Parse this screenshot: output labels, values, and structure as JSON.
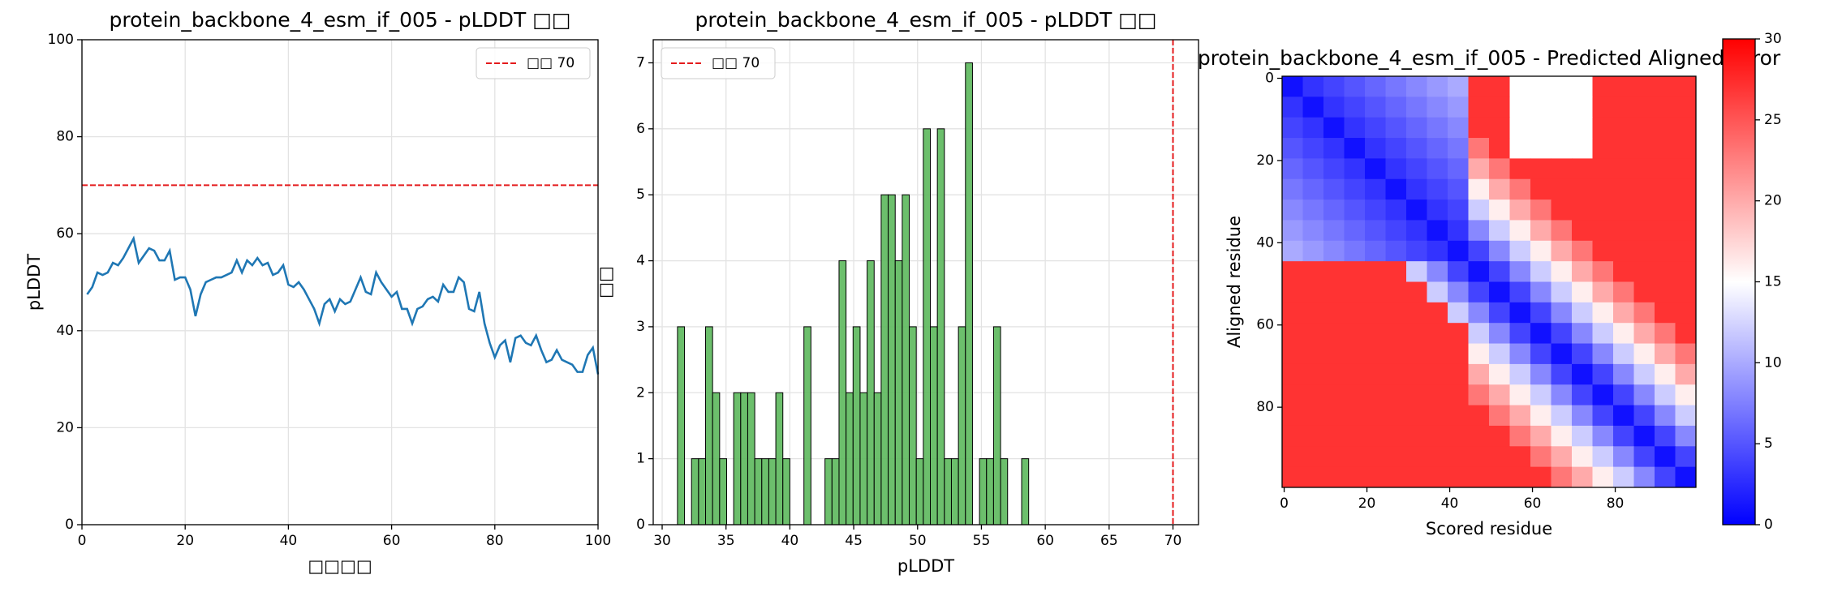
{
  "chart_data": [
    {
      "type": "line",
      "title": "protein_backbone_4_esm_if_005 - pLDDT □□",
      "xlabel": "□□□□",
      "ylabel": "pLDDT",
      "x": [
        1,
        2,
        3,
        4,
        5,
        6,
        7,
        8,
        9,
        10,
        11,
        12,
        13,
        14,
        15,
        16,
        17,
        18,
        19,
        20,
        21,
        22,
        23,
        24,
        25,
        26,
        27,
        28,
        29,
        30,
        31,
        32,
        33,
        34,
        35,
        36,
        37,
        38,
        39,
        40,
        41,
        42,
        43,
        44,
        45,
        46,
        47,
        48,
        49,
        50,
        51,
        52,
        53,
        54,
        55,
        56,
        57,
        58,
        59,
        60,
        61,
        62,
        63,
        64,
        65,
        66,
        67,
        68,
        69,
        70,
        71,
        72,
        73,
        74,
        75,
        76,
        77,
        78,
        79,
        80,
        81,
        82,
        83,
        84,
        85,
        86,
        87,
        88,
        89,
        90,
        91,
        92,
        93,
        94,
        95,
        96,
        97,
        98,
        99,
        100
      ],
      "values": [
        47.5,
        49,
        52,
        51.5,
        52,
        54,
        53.5,
        55,
        57,
        59,
        54,
        55.5,
        57,
        56.5,
        54.5,
        54.5,
        56.5,
        50.5,
        51,
        51,
        48.5,
        43,
        47.5,
        50,
        50.5,
        51,
        51,
        51.5,
        52,
        54.5,
        52,
        54.5,
        53.5,
        55,
        53.5,
        54,
        51.5,
        52,
        53.5,
        49.5,
        49,
        50,
        48.5,
        46.5,
        44.5,
        41.5,
        45.5,
        46.5,
        44,
        46.5,
        45.5,
        46,
        48.5,
        51,
        48,
        47.5,
        52,
        50,
        48.5,
        47,
        48,
        44.5,
        44.5,
        41.5,
        44.5,
        45,
        46.5,
        47,
        46,
        49.5,
        48,
        48,
        51,
        50,
        44.5,
        44,
        48,
        41.5,
        37.5,
        34.5,
        37,
        38,
        33.5,
        38.5,
        39,
        37.5,
        37,
        39,
        36,
        33.5,
        34,
        36,
        34,
        33.5,
        33,
        31.5,
        31.5,
        35,
        36.5,
        31
      ],
      "color": "#1f77b4",
      "xlim": [
        0,
        100
      ],
      "ylim": [
        0,
        100
      ],
      "xticks": [
        0,
        20,
        40,
        60,
        80,
        100
      ],
      "yticks": [
        0,
        20,
        40,
        60,
        80,
        100
      ],
      "grid": true,
      "threshold": {
        "value": 70,
        "label": "□□ 70",
        "color": "#e41a1c",
        "orientation": "horizontal"
      },
      "legend": "upper right"
    },
    {
      "type": "histogram",
      "title": "protein_backbone_4_esm_if_005 - pLDDT □□",
      "xlabel": "pLDDT",
      "ylabel": "□□",
      "bins": [
        31.2,
        31.75,
        32.3,
        32.85,
        33.4,
        33.95,
        34.5,
        35.05,
        35.6,
        36.15,
        36.7,
        37.25,
        37.8,
        38.35,
        38.9,
        39.45,
        40.0,
        40.55,
        41.1,
        41.65,
        42.2,
        42.75,
        43.3,
        43.85,
        44.4,
        44.95,
        45.5,
        46.05,
        46.6,
        47.15,
        47.7,
        48.25,
        48.8,
        49.35,
        49.9,
        50.45,
        51.0,
        51.55,
        52.1,
        52.65,
        53.2,
        53.75,
        54.3,
        54.85,
        55.4,
        55.95,
        56.5,
        57.05,
        57.6,
        58.15,
        58.7
      ],
      "counts": [
        3,
        0,
        1,
        1,
        3,
        2,
        1,
        0,
        2,
        2,
        2,
        1,
        1,
        1,
        2,
        1,
        0,
        0,
        3,
        0,
        0,
        1,
        1,
        4,
        2,
        3,
        2,
        4,
        2,
        5,
        5,
        4,
        5,
        3,
        1,
        6,
        3,
        6,
        1,
        1,
        3,
        7,
        0,
        1,
        1,
        3,
        1,
        0,
        0,
        1
      ],
      "color": "#5cb85c",
      "xlim": [
        29.3,
        72
      ],
      "ylim": [
        0,
        7.35
      ],
      "xticks": [
        30,
        35,
        40,
        45,
        50,
        55,
        60,
        65,
        70
      ],
      "yticks": [
        0,
        1,
        2,
        3,
        4,
        5,
        6,
        7
      ],
      "grid": true,
      "threshold": {
        "value": 70,
        "label": "□□ 70",
        "color": "#e41a1c",
        "orientation": "vertical"
      },
      "legend": "upper left"
    },
    {
      "type": "heatmap",
      "title": "protein_backbone_4_esm_if_005 - Predicted Aligned Error",
      "xlabel": "Scored residue",
      "ylabel": "Aligned residue",
      "xlim": [
        -0.5,
        99.5
      ],
      "ylim": [
        99.5,
        -0.5
      ],
      "xticks": [
        0,
        20,
        40,
        60,
        80
      ],
      "yticks": [
        0,
        20,
        40,
        60,
        80
      ],
      "colormap": "bwr",
      "colorbar": {
        "lim": [
          0,
          30
        ],
        "ticks": [
          0,
          5,
          10,
          15,
          20,
          25,
          30
        ]
      },
      "matrix": [
        [
          1,
          3,
          4,
          5,
          6,
          7,
          8,
          9,
          10,
          27,
          27,
          15,
          15,
          15,
          15,
          27,
          27,
          27,
          27,
          27
        ],
        [
          3,
          1,
          3,
          4,
          5,
          6,
          7,
          8,
          9,
          27,
          27,
          15,
          15,
          15,
          15,
          27,
          27,
          27,
          27,
          27
        ],
        [
          4,
          3,
          1,
          3,
          4,
          5,
          6,
          7,
          8,
          27,
          27,
          15,
          15,
          15,
          15,
          27,
          27,
          27,
          27,
          27
        ],
        [
          5,
          4,
          3,
          1,
          3,
          4,
          5,
          6,
          7,
          23,
          27,
          15,
          15,
          15,
          15,
          27,
          27,
          27,
          27,
          27
        ],
        [
          6,
          5,
          4,
          3,
          1,
          3,
          4,
          5,
          6,
          20,
          23,
          27,
          27,
          27,
          27,
          27,
          27,
          27,
          27,
          27
        ],
        [
          7,
          6,
          5,
          4,
          3,
          1,
          3,
          4,
          5,
          16,
          20,
          23,
          27,
          27,
          27,
          27,
          27,
          27,
          27,
          27
        ],
        [
          8,
          7,
          6,
          5,
          4,
          3,
          1,
          3,
          4,
          12,
          16,
          20,
          23,
          27,
          27,
          27,
          27,
          27,
          27,
          27
        ],
        [
          9,
          8,
          7,
          6,
          5,
          4,
          3,
          1,
          3,
          8,
          12,
          16,
          20,
          23,
          27,
          27,
          27,
          27,
          27,
          27
        ],
        [
          10,
          9,
          8,
          7,
          6,
          5,
          4,
          3,
          1,
          4,
          8,
          12,
          16,
          20,
          23,
          27,
          27,
          27,
          27,
          27
        ],
        [
          27,
          27,
          27,
          27,
          27,
          27,
          12,
          8,
          4,
          1,
          4,
          8,
          12,
          16,
          20,
          23,
          27,
          27,
          27,
          27
        ],
        [
          27,
          27,
          27,
          27,
          27,
          27,
          27,
          12,
          8,
          4,
          1,
          4,
          8,
          12,
          16,
          20,
          23,
          27,
          27,
          27
        ],
        [
          27,
          27,
          27,
          27,
          27,
          27,
          27,
          27,
          12,
          8,
          4,
          1,
          4,
          8,
          12,
          16,
          20,
          23,
          27,
          27
        ],
        [
          27,
          27,
          27,
          27,
          27,
          27,
          27,
          27,
          27,
          12,
          8,
          4,
          1,
          4,
          8,
          12,
          16,
          20,
          23,
          27
        ],
        [
          27,
          27,
          27,
          27,
          27,
          27,
          27,
          27,
          27,
          16,
          12,
          8,
          4,
          1,
          4,
          8,
          12,
          16,
          20,
          23
        ],
        [
          27,
          27,
          27,
          27,
          27,
          27,
          27,
          27,
          27,
          20,
          16,
          12,
          8,
          4,
          1,
          4,
          8,
          12,
          16,
          20
        ],
        [
          27,
          27,
          27,
          27,
          27,
          27,
          27,
          27,
          27,
          23,
          20,
          16,
          12,
          8,
          4,
          1,
          4,
          8,
          12,
          16
        ],
        [
          27,
          27,
          27,
          27,
          27,
          27,
          27,
          27,
          27,
          27,
          23,
          20,
          16,
          12,
          8,
          4,
          1,
          4,
          8,
          12
        ],
        [
          27,
          27,
          27,
          27,
          27,
          27,
          27,
          27,
          27,
          27,
          27,
          23,
          20,
          16,
          12,
          8,
          4,
          1,
          4,
          8
        ],
        [
          27,
          27,
          27,
          27,
          27,
          27,
          27,
          27,
          27,
          27,
          27,
          27,
          23,
          20,
          16,
          12,
          8,
          4,
          1,
          4
        ],
        [
          27,
          27,
          27,
          27,
          27,
          27,
          27,
          27,
          27,
          27,
          27,
          27,
          27,
          23,
          20,
          16,
          12,
          8,
          4,
          1
        ]
      ]
    }
  ]
}
